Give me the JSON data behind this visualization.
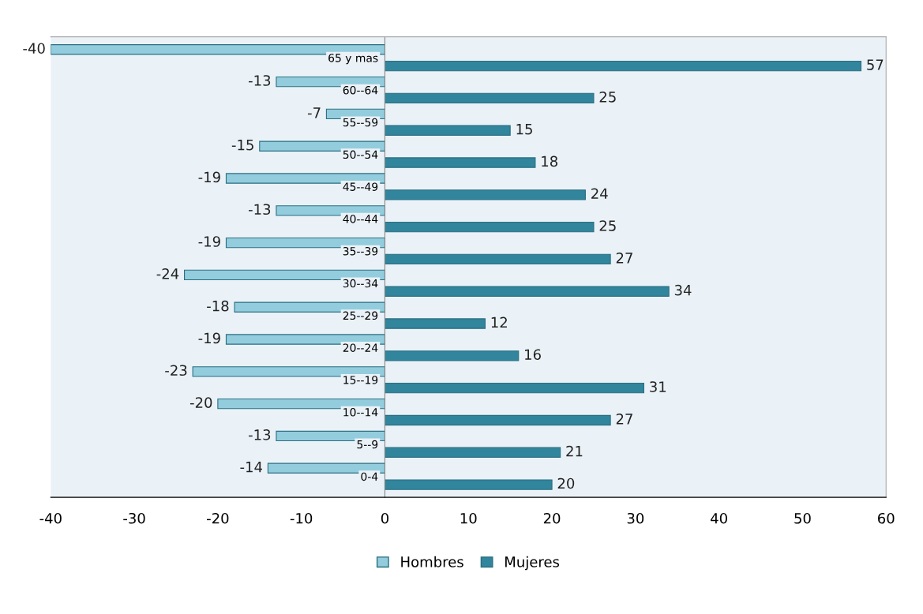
{
  "chart_data": {
    "type": "bar",
    "orientation": "horizontal",
    "categories": [
      "65 y mas",
      "60--64",
      "55--59",
      "50--54",
      "45--49",
      "40--44",
      "35--39",
      "30--34",
      "25--29",
      "20--24",
      "15--19",
      "10--14",
      "5--9",
      "0-4"
    ],
    "series": [
      {
        "name": "Hombres",
        "color": "#93cddd",
        "values": [
          -40,
          -13,
          -7,
          -15,
          -19,
          -13,
          -19,
          -24,
          -18,
          -19,
          -23,
          -20,
          -13,
          -14
        ]
      },
      {
        "name": "Mujeres",
        "color": "#31859c",
        "values": [
          57,
          25,
          15,
          18,
          24,
          25,
          27,
          34,
          12,
          16,
          31,
          27,
          21,
          20
        ]
      }
    ],
    "xlim": [
      -40,
      60
    ],
    "xticks": [
      -40,
      -30,
      -20,
      -10,
      0,
      10,
      20,
      30,
      40,
      50,
      60
    ],
    "data_labels": true,
    "grid": false,
    "legend": "bottom"
  }
}
